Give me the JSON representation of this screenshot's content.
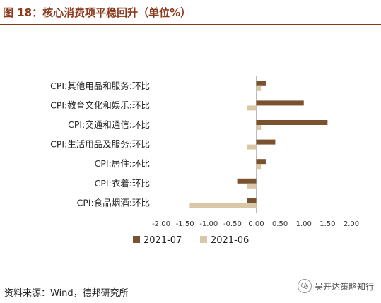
{
  "header": {
    "title": "图 18：核心消费项平稳回升（单位%）"
  },
  "footer": {
    "source": "资料来源：Wind，德邦研究所",
    "watermark": "吴开达策略知行"
  },
  "colors": {
    "series_2021_07": "#7a5230",
    "series_2021_06": "#d9c7a8",
    "accent": "#8b3a1e"
  },
  "chart_data": {
    "type": "bar",
    "orientation": "horizontal",
    "categories": [
      "CPI:其他用品和服务:环比",
      "CPI:教育文化和娱乐:环比",
      "CPI:交通和通信:环比",
      "CPI:生活用品及服务:环比",
      "CPI:居住:环比",
      "CPI:衣着:环比",
      "CPI:食品烟酒:环比"
    ],
    "series": [
      {
        "name": "2021-07",
        "values": [
          0.2,
          1.0,
          1.5,
          0.4,
          0.2,
          -0.4,
          -0.2
        ]
      },
      {
        "name": "2021-06",
        "values": [
          0.1,
          -0.2,
          0.1,
          -0.2,
          0.1,
          -0.2,
          -1.4
        ]
      }
    ],
    "xlim": [
      -2.0,
      2.0
    ],
    "ticks": [
      "-2.00",
      "-1.50",
      "-1.00",
      "-0.50",
      "0.00",
      "0.50",
      "1.00",
      "1.50",
      "2.00"
    ],
    "legend_position": "bottom",
    "grid": false
  }
}
